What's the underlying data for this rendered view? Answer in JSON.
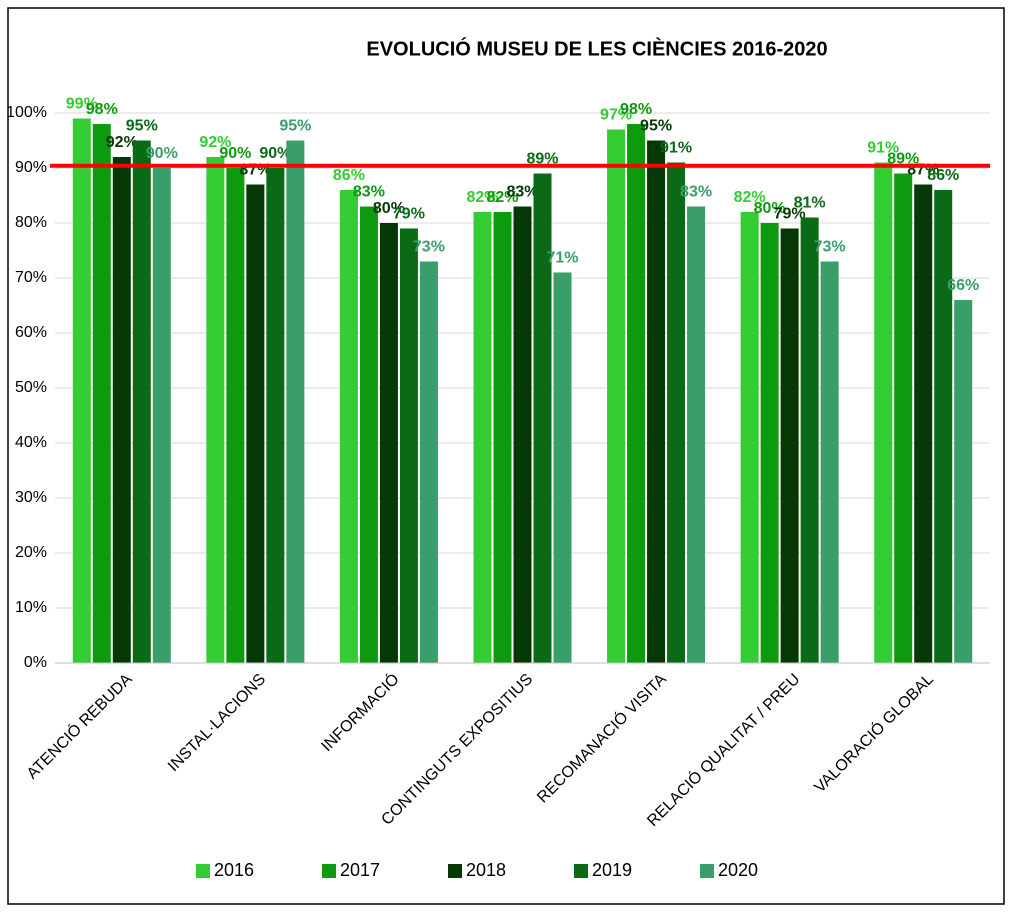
{
  "chart_data": {
    "type": "bar",
    "title": "EVOLUCIÓ MUSEU DE LES CIÈNCIES 2016-2020",
    "categories": [
      "ATENCIÓ REBUDA",
      "INSTAL·LACIONS",
      "INFORMACIÓ",
      "CONTINGUTS EXPOSITIUS",
      "RECOMANACIÓ VISITA",
      "RELACIÓ QUALITAT / PREU",
      "VALORACIÓ GLOBAL"
    ],
    "series": [
      {
        "name": "2016",
        "color": "#33cc33",
        "values": [
          99,
          92,
          86,
          82,
          97,
          82,
          91
        ],
        "value_labels": [
          "99%",
          "92%",
          "86%",
          "82%",
          "97%",
          "82%",
          "91%"
        ]
      },
      {
        "name": "2017",
        "color": "#0e9a0e",
        "values": [
          98,
          90,
          83,
          82,
          98,
          80,
          89
        ],
        "value_labels": [
          "98%",
          "90%",
          "83%",
          "82%",
          "98%",
          "80%",
          "89%"
        ]
      },
      {
        "name": "2018",
        "color": "#053805",
        "values": [
          92,
          87,
          80,
          83,
          95,
          79,
          87
        ],
        "value_labels": [
          "92%",
          "87%",
          "80%",
          "83%",
          "95%",
          "79%",
          "87%"
        ]
      },
      {
        "name": "2019",
        "color": "#0b6a16",
        "values": [
          95,
          90,
          79,
          89,
          91,
          81,
          86
        ],
        "value_labels": [
          "95%",
          "90%",
          "79%",
          "89%",
          "91%",
          "81%",
          "86%"
        ]
      },
      {
        "name": "2020",
        "color": "#3a9e6a",
        "values": [
          90,
          95,
          73,
          71,
          83,
          73,
          66
        ],
        "value_labels": [
          "90%",
          "95%",
          "73%",
          "71%",
          "83%",
          "73%",
          "66%"
        ]
      }
    ],
    "ylim": [
      0,
      100
    ],
    "yticks": [
      {
        "value": 0,
        "label": "0%"
      },
      {
        "value": 10,
        "label": "10%"
      },
      {
        "value": 20,
        "label": "20%"
      },
      {
        "value": 30,
        "label": "30%"
      },
      {
        "value": 40,
        "label": "40%"
      },
      {
        "value": 50,
        "label": "50%"
      },
      {
        "value": 60,
        "label": "60%"
      },
      {
        "value": 70,
        "label": "70%"
      },
      {
        "value": 80,
        "label": "80%"
      },
      {
        "value": 90,
        "label": "90%"
      },
      {
        "value": 100,
        "label": "100%"
      }
    ],
    "grid": true,
    "reference_line": {
      "value": 90.4,
      "color": "#ff0000"
    },
    "legend": "bottom"
  }
}
